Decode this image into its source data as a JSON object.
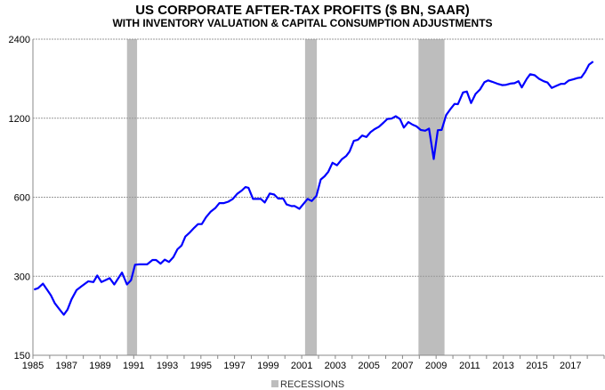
{
  "chart_data": {
    "type": "line",
    "title": "US CORPORATE AFTER-TAX PROFITS ($ BN, SAAR)",
    "subtitle": "WITH INVENTORY VALUATION & CAPITAL CONSUMPTION ADJUSTMENTS",
    "xlabel": "",
    "ylabel": "",
    "y_scale": "log",
    "ylim": [
      150,
      2400
    ],
    "xlim": [
      1985,
      2019
    ],
    "y_ticks": [
      "2400",
      "1200",
      "600",
      "300",
      "150"
    ],
    "y_tick_values": [
      2400,
      1200,
      600,
      300,
      150
    ],
    "x_ticks": [
      "1985",
      "1987",
      "1989",
      "1991",
      "1993",
      "1995",
      "1997",
      "1999",
      "2001",
      "2003",
      "2005",
      "2007",
      "2009",
      "2011",
      "2013",
      "2015",
      "2017"
    ],
    "grid": "horizontal dotted",
    "line_color": "#0000ff",
    "recession_color": "#bdbdbd",
    "legend": {
      "placement": "bottom",
      "label": "RECESSIONS"
    },
    "recessions": [
      [
        1990.6,
        1991.2
      ],
      [
        2001.2,
        2001.9
      ],
      [
        2007.95,
        2009.5
      ]
    ],
    "series": [
      {
        "x": [
          1985.07,
          1985.3,
          1985.6,
          1985.86,
          1986.07,
          1986.3,
          1986.57,
          1986.84,
          1987.06,
          1987.3,
          1987.6,
          1987.9,
          1988.3,
          1988.6,
          1988.83,
          1989.08,
          1989.57,
          1989.84,
          1990.3,
          1990.6,
          1990.84,
          1991.08,
          1991.33,
          1991.8,
          1992.12,
          1992.33,
          1992.6,
          1992.85,
          1993.1,
          1993.36,
          1993.6,
          1993.85,
          1994.07,
          1994.35,
          1994.6,
          1994.83,
          1995.05,
          1995.3,
          1995.57,
          1995.85,
          1996.1,
          1996.37,
          1996.63,
          1996.9,
          1997.16,
          1997.43,
          1997.65,
          1997.83,
          1998.1,
          1998.57,
          1998.8,
          1999.1,
          1999.36,
          1999.6,
          1999.9,
          2000.1,
          2000.4,
          2000.57,
          2000.86,
          2001.35,
          2001.6,
          2001.88,
          2002.13,
          2002.36,
          2002.58,
          2002.83,
          2003.1,
          2003.4,
          2003.65,
          2003.85,
          2004.1,
          2004.35,
          2004.6,
          2004.85,
          2005.1,
          2005.33,
          2005.6,
          2005.88,
          2006.1,
          2006.35,
          2006.6,
          2006.85,
          2007.08,
          2007.35,
          2007.6,
          2007.83,
          2008.08,
          2008.35,
          2008.58,
          2008.86,
          2009.1,
          2009.33,
          2009.6,
          2009.85,
          2010.1,
          2010.3,
          2010.6,
          2010.83,
          2011.08,
          2011.35,
          2011.61,
          2011.87,
          2012.1,
          2012.35,
          2012.63,
          2012.93,
          2013.15,
          2013.42,
          2013.67,
          2013.9,
          2014.1,
          2014.4,
          2014.6,
          2014.87,
          2015.13,
          2015.4,
          2015.63,
          2015.88,
          2016.16,
          2016.42,
          2016.64,
          2016.9,
          2017.17,
          2017.43,
          2017.64,
          2017.87,
          2018.1,
          2018.35
        ],
        "values": [
          267,
          270,
          281,
          266,
          254,
          237,
          225,
          214,
          224,
          245,
          266,
          275,
          287,
          285,
          302,
          285,
          295,
          279,
          310,
          279,
          290,
          332,
          333,
          333,
          346,
          346,
          335,
          347,
          340,
          355,
          380,
          393,
          425,
          441,
          459,
          474,
          474,
          503,
          528,
          545,
          570,
          570,
          577,
          591,
          618,
          636,
          656,
          652,
          591,
          591,
          573,
          620,
          614,
          593,
          593,
          563,
          555,
          556,
          542,
          591,
          580,
          608,
          701,
          721,
          750,
          812,
          794,
          838,
          862,
          896,
          984,
          994,
          1031,
          1017,
          1062,
          1090,
          1114,
          1156,
          1192,
          1196,
          1221,
          1191,
          1105,
          1160,
          1134,
          1117,
          1083,
          1075,
          1096,
          839,
          1080,
          1083,
          1234,
          1299,
          1360,
          1357,
          1505,
          1516,
          1371,
          1485,
          1544,
          1645,
          1672,
          1651,
          1626,
          1604,
          1608,
          1626,
          1632,
          1660,
          1572,
          1696,
          1766,
          1749,
          1696,
          1660,
          1641,
          1566,
          1594,
          1621,
          1621,
          1670,
          1687,
          1708,
          1716,
          1800,
          1920,
          1972
        ]
      }
    ]
  }
}
